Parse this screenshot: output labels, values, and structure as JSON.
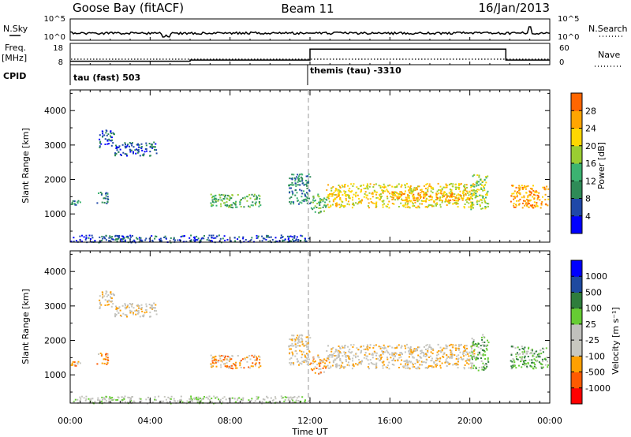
{
  "header": {
    "station": "Goose Bay (fitACF)",
    "beam": "Beam 11",
    "date": "16/Jan/2013"
  },
  "top_panels": {
    "nsky_label": "N.Sky",
    "nsky_ticks": [
      "10^5",
      "10^0"
    ],
    "nsearch_label": "N.Search",
    "nsearch_ticks": [
      "10^5",
      "10^0"
    ],
    "freq_label": "Freq.",
    "freq_unit": "[MHz]",
    "freq_ticks": [
      "18",
      "8"
    ],
    "nave_label": "Nave",
    "nave_ticks": [
      "60",
      "0"
    ],
    "cpid_label": "CPID",
    "cpid_entries": [
      {
        "text": "tau (fast) 503",
        "start_hour": 0
      },
      {
        "text": "themis (tau) -3310",
        "start_hour": 12
      }
    ]
  },
  "colors": {
    "power": [
      "#0000ff",
      "#1f48a8",
      "#2e8b57",
      "#3cb371",
      "#9acd32",
      "#ffd700",
      "#ffa500",
      "#ff6600",
      "#ff2000"
    ],
    "velocity": [
      "#ff0000",
      "#ff5a00",
      "#ffa000",
      "#c8c8c0",
      "#c0c0bc",
      "#66cc33",
      "#2e7d3c",
      "#1e4aa0",
      "#0000ff"
    ],
    "frame": "#000000"
  },
  "chart_data": [
    {
      "type": "heatmap",
      "name": "power",
      "ylabel": "Slant Range [km]",
      "yticks": [
        1000,
        2000,
        3000,
        4000
      ],
      "ylim": [
        180,
        4600
      ],
      "xlim": [
        0,
        24
      ],
      "colorbar_label": "Power [dB]",
      "colorbar_ticks": [
        "4",
        "8",
        "12",
        "16",
        "20",
        "24",
        "28"
      ],
      "regions": [
        {
          "t": [
            0.0,
            0.5
          ],
          "r": [
            1250,
            1450
          ],
          "level": 2
        },
        {
          "t": [
            1.3,
            1.9
          ],
          "r": [
            1300,
            1650
          ],
          "level": 2
        },
        {
          "t": [
            1.4,
            2.2
          ],
          "r": [
            2950,
            3450
          ],
          "level": 1
        },
        {
          "t": [
            2.2,
            4.3
          ],
          "r": [
            2700,
            3100
          ],
          "level": 1
        },
        {
          "t": [
            7.0,
            9.5
          ],
          "r": [
            1200,
            1600
          ],
          "level": 3
        },
        {
          "t": [
            10.9,
            12.0
          ],
          "r": [
            1300,
            2200
          ],
          "level": 2
        },
        {
          "t": [
            12.0,
            12.8
          ],
          "r": [
            1050,
            1600
          ],
          "level": 3
        },
        {
          "t": [
            12.8,
            20.2
          ],
          "r": [
            1200,
            1900
          ],
          "level": 5
        },
        {
          "t": [
            16.0,
            20.0
          ],
          "r": [
            1400,
            1650
          ],
          "level": 6
        },
        {
          "t": [
            20.0,
            20.9
          ],
          "r": [
            1150,
            2200
          ],
          "level": 4
        },
        {
          "t": [
            22.0,
            23.9
          ],
          "r": [
            1200,
            1850
          ],
          "level": 6
        },
        {
          "t": [
            0.0,
            12.0
          ],
          "r": [
            190,
            400
          ],
          "level": 1
        }
      ]
    },
    {
      "type": "heatmap",
      "name": "velocity",
      "ylabel": "Slant Range [km]",
      "yticks": [
        1000,
        2000,
        3000,
        4000
      ],
      "ylim": [
        180,
        4600
      ],
      "xlim": [
        0,
        24
      ],
      "xticks": [
        "00:00",
        "04:00",
        "08:00",
        "12:00",
        "16:00",
        "20:00",
        "00:00"
      ],
      "xlabel": "Time UT",
      "colorbar_label": "Velocity [m s⁻¹]",
      "colorbar_ticks": [
        "-1000",
        "-500",
        "-100",
        "-25",
        "25",
        "100",
        "500",
        "1000"
      ],
      "regions": [
        {
          "t": [
            0.0,
            0.5
          ],
          "r": [
            1250,
            1450
          ],
          "level": 2
        },
        {
          "t": [
            1.3,
            1.9
          ],
          "r": [
            1300,
            1650
          ],
          "level": 2
        },
        {
          "t": [
            1.4,
            2.2
          ],
          "r": [
            2950,
            3450
          ],
          "level": 3
        },
        {
          "t": [
            2.2,
            4.3
          ],
          "r": [
            2700,
            3100
          ],
          "level": 3
        },
        {
          "t": [
            7.0,
            9.5
          ],
          "r": [
            1200,
            1600
          ],
          "level": 2
        },
        {
          "t": [
            10.9,
            12.0
          ],
          "r": [
            1300,
            2200
          ],
          "level": 3
        },
        {
          "t": [
            12.0,
            12.8
          ],
          "r": [
            1050,
            1600
          ],
          "level": 2
        },
        {
          "t": [
            12.8,
            20.2
          ],
          "r": [
            1200,
            1900
          ],
          "level": 3
        },
        {
          "t": [
            20.0,
            20.9
          ],
          "r": [
            1150,
            2200
          ],
          "level": 5
        },
        {
          "t": [
            22.0,
            23.9
          ],
          "r": [
            1200,
            1850
          ],
          "level": 5
        },
        {
          "t": [
            0.0,
            12.0
          ],
          "r": [
            190,
            400
          ],
          "level": 4
        }
      ]
    }
  ],
  "summary": {
    "freq_steps": [
      {
        "t": [
          0.0,
          6.0
        ],
        "mhz": 10.0
      },
      {
        "t": [
          6.0,
          12.0
        ],
        "mhz": 10.7
      },
      {
        "t": [
          12.0,
          21.8
        ],
        "mhz": 17.0
      },
      {
        "t": [
          21.8,
          24.0
        ],
        "mhz": 10.7
      }
    ]
  }
}
